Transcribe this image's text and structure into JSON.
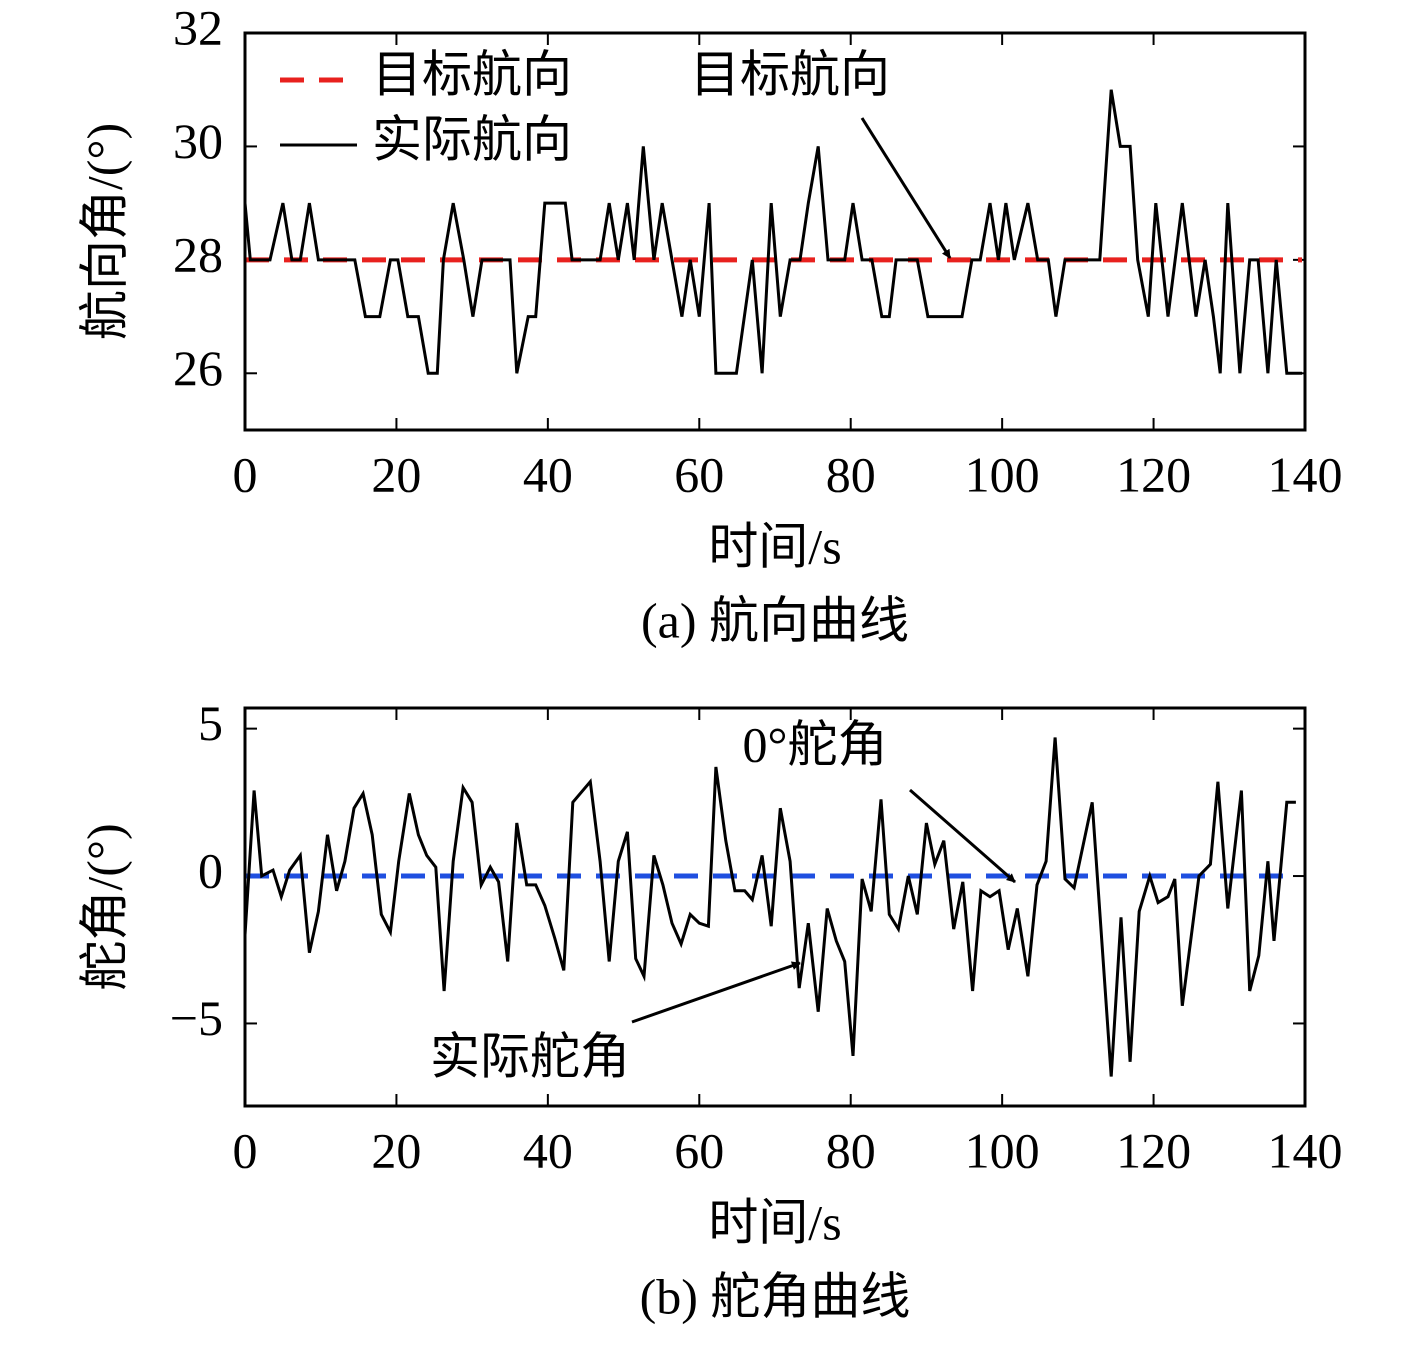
{
  "chart_data": [
    {
      "type": "line",
      "caption": "(a) 航向曲线",
      "xlabel": "时间/s",
      "ylabel": "航向角/(°)",
      "xlim": [
        0,
        140
      ],
      "ylim": [
        25,
        32
      ],
      "xticks": [
        0,
        20,
        40,
        60,
        80,
        100,
        120,
        140
      ],
      "yticks": [
        26,
        28,
        30,
        32
      ],
      "legend": "upper left",
      "series": [
        {
          "name": "目标航向",
          "color": "#e8211e",
          "dash": true,
          "x": [
            0,
            139.6
          ],
          "values": [
            28,
            28
          ]
        },
        {
          "name": "实际航向",
          "color": "#000000",
          "dash": false,
          "x": [
            0,
            0.7,
            3.3,
            5.0,
            6.2,
            7.3,
            8.5,
            9.7,
            14.5,
            15.9,
            17.8,
            19.2,
            20.2,
            21.5,
            22.9,
            24.2,
            25.4,
            26.2,
            27.5,
            28.9,
            30.1,
            31.3,
            35.0,
            35.9,
            37.4,
            38.4,
            39.6,
            42.3,
            43.2,
            46.9,
            48.1,
            49.3,
            50.5,
            51.4,
            52.6,
            54.0,
            55.1,
            56.4,
            57.7,
            58.8,
            60.0,
            61.3,
            62.2,
            64.9,
            67.0,
            68.3,
            69.5,
            70.7,
            72.0,
            73.3,
            74.4,
            75.7,
            77.0,
            79.2,
            80.3,
            81.5,
            82.8,
            84.1,
            85.1,
            86.0,
            88.8,
            90.2,
            94.7,
            96.0,
            97.1,
            98.4,
            99.5,
            100.5,
            101.6,
            103.4,
            104.7,
            106.1,
            107.1,
            108.3,
            112.9,
            114.4,
            115.6,
            116.9,
            117.9,
            119.3,
            120.3,
            121.9,
            123.8,
            125.6,
            126.8,
            127.9,
            128.8,
            129.8,
            131.4,
            132.7,
            133.8,
            135.1,
            136.2,
            137.6,
            139.6
          ],
          "values": [
            29,
            28,
            28,
            29,
            28,
            28,
            29,
            28,
            28,
            27,
            27,
            28,
            28,
            27,
            27,
            26,
            26,
            28,
            29,
            28,
            27,
            28,
            28,
            26,
            27,
            27,
            29,
            29,
            28,
            28,
            29,
            28,
            29,
            28,
            30,
            28,
            29,
            28,
            27,
            28,
            27,
            29,
            26,
            26,
            28,
            26,
            29,
            27,
            28,
            28,
            29,
            30,
            28,
            28,
            29,
            28,
            28,
            27,
            27,
            28,
            28,
            27,
            27,
            28,
            28,
            29,
            28,
            29,
            28,
            29,
            28,
            28,
            27,
            28,
            28,
            31,
            30,
            30,
            28,
            27,
            29,
            27,
            29,
            27,
            28,
            27,
            26,
            29,
            26,
            28,
            28,
            26,
            28,
            26,
            26
          ]
        }
      ],
      "annotations": [
        {
          "text": "目标航向"
        }
      ]
    },
    {
      "type": "line",
      "caption": "(b) 舵角曲线",
      "xlabel": "时间/s",
      "ylabel": "舵角/(°)",
      "xlim": [
        0,
        140
      ],
      "ylim": [
        -7.8,
        5.7
      ],
      "xticks": [
        0,
        20,
        40,
        60,
        80,
        100,
        120,
        140
      ],
      "yticks": [
        {
          "value": -5,
          "label": "−5"
        },
        0,
        5
      ],
      "series": [
        {
          "color": "#1f4fe0",
          "dash": true,
          "x": [
            0,
            138.8
          ],
          "values": [
            0,
            0
          ]
        },
        {
          "color": "#000000",
          "dash": false,
          "x": [
            0,
            1.2,
            2.2,
            3.7,
            4.8,
            5.9,
            7.3,
            8.5,
            9.7,
            10.9,
            12.1,
            13.2,
            14.4,
            15.6,
            16.8,
            18.0,
            19.2,
            20.3,
            21.7,
            22.9,
            24.0,
            25.2,
            26.3,
            27.5,
            28.8,
            30.0,
            31.2,
            32.4,
            33.5,
            34.7,
            35.9,
            37.2,
            38.4,
            39.6,
            40.9,
            42.1,
            43.3,
            45.6,
            46.9,
            48.1,
            49.3,
            50.5,
            51.6,
            52.7,
            54.0,
            55.2,
            56.4,
            57.6,
            58.8,
            60.0,
            61.2,
            62.2,
            63.5,
            64.7,
            66.0,
            67.0,
            68.3,
            69.5,
            70.7,
            72.0,
            73.2,
            74.4,
            75.7,
            76.9,
            78.1,
            79.2,
            80.3,
            81.5,
            82.7,
            84.0,
            85.1,
            86.3,
            87.6,
            88.8,
            90.0,
            91.1,
            92.3,
            93.6,
            94.8,
            96.1,
            97.2,
            98.4,
            99.6,
            100.8,
            102.0,
            103.4,
            104.6,
            105.8,
            107.0,
            108.3,
            109.5,
            111.9,
            114.4,
            115.7,
            116.9,
            118.1,
            119.5,
            120.6,
            121.9,
            122.8,
            123.8,
            126.0,
            127.5,
            128.5,
            129.8,
            131.6,
            132.7,
            133.9,
            135.1,
            135.9,
            137.6,
            138.8
          ],
          "values": [
            -2.0,
            2.9,
            0,
            0.2,
            -0.7,
            0.2,
            0.7,
            -2.6,
            -1.2,
            1.4,
            -0.5,
            0.5,
            2.3,
            2.8,
            1.4,
            -1.3,
            -1.9,
            0.5,
            2.8,
            1.4,
            0.7,
            0.3,
            -3.9,
            0.5,
            3.0,
            2.5,
            -0.3,
            0.3,
            -0.2,
            -2.9,
            1.8,
            -0.3,
            -0.3,
            -1.0,
            -2.1,
            -3.2,
            2.5,
            3.2,
            0.5,
            -2.9,
            0.5,
            1.5,
            -2.8,
            -3.4,
            0.7,
            -0.3,
            -1.6,
            -2.3,
            -1.3,
            -1.6,
            -1.7,
            3.7,
            1.2,
            -0.5,
            -0.5,
            -0.8,
            0.7,
            -1.7,
            2.3,
            0.5,
            -3.8,
            -1.6,
            -4.6,
            -1.1,
            -2.2,
            -2.9,
            -6.1,
            -0.1,
            -1.2,
            2.6,
            -1.3,
            -1.8,
            0,
            -1.3,
            1.8,
            0.4,
            1.2,
            -1.8,
            -0.2,
            -3.9,
            -0.5,
            -0.7,
            -0.5,
            -2.5,
            -1.1,
            -3.4,
            -0.3,
            0.5,
            4.7,
            -0.1,
            -0.4,
            2.5,
            -6.8,
            -1.4,
            -6.3,
            -1.2,
            0,
            -0.9,
            -0.7,
            -0.1,
            -4.4,
            0,
            0.4,
            3.2,
            -1.1,
            2.9,
            -3.9,
            -2.7,
            0.5,
            -2.2,
            2.5,
            2.5
          ]
        }
      ],
      "annotations": [
        {
          "text": "0°舵角"
        },
        {
          "text": "实际舵角"
        }
      ]
    }
  ]
}
